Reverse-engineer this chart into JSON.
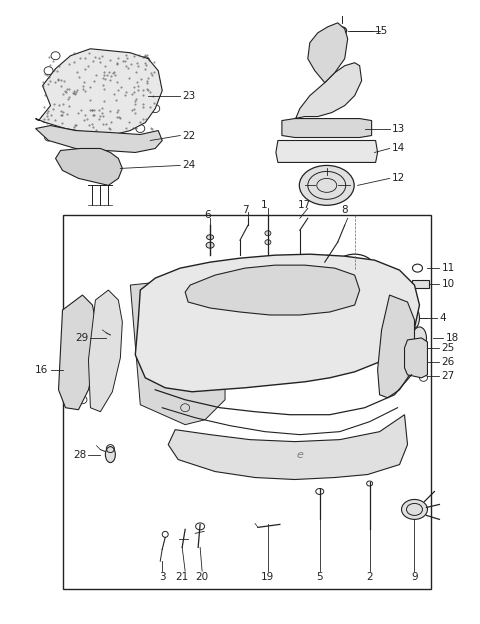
{
  "bg_color": "#ffffff",
  "line_color": "#222222",
  "fig_width": 4.8,
  "fig_height": 6.24,
  "dpi": 100
}
